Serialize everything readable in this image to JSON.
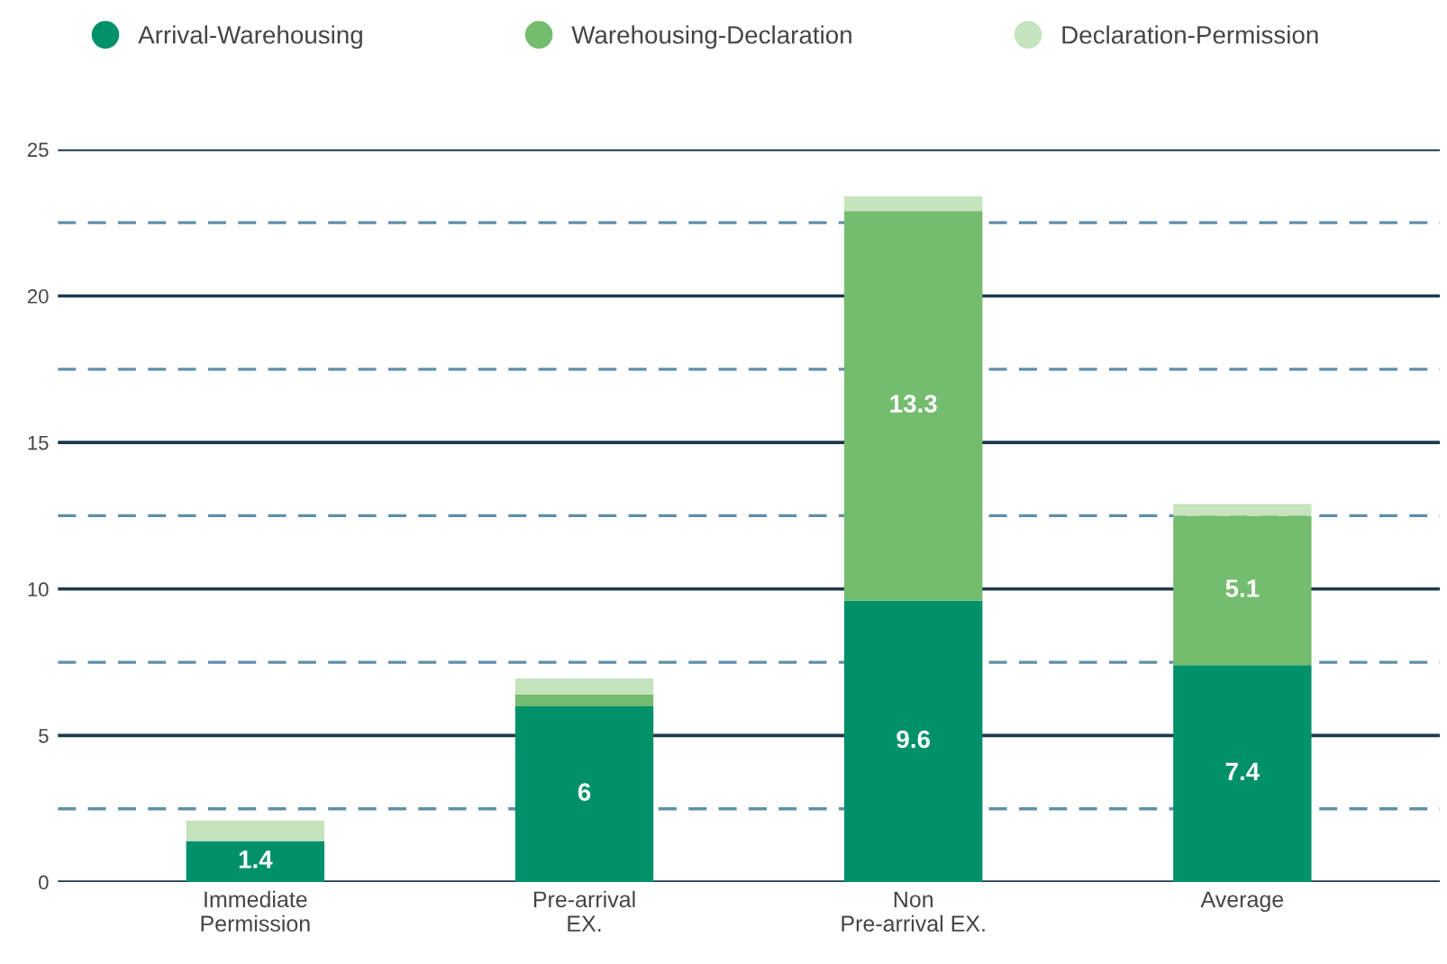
{
  "chart_data": {
    "type": "bar",
    "stacked": true,
    "categories": [
      "Immediate\nPermission",
      "Pre-arrival\nEX.",
      "Non\nPre-arrival EX.",
      "Average"
    ],
    "series": [
      {
        "name": "Arrival-Warehousing",
        "color": "#00906a",
        "values": [
          1.4,
          6,
          9.6,
          7.4
        ],
        "value_labels": [
          "1.4",
          "6",
          "9.6",
          "7.4"
        ]
      },
      {
        "name": "Warehousing-Declaration",
        "color": "#74bc6e",
        "values": [
          0,
          0.4,
          13.3,
          5.1
        ],
        "value_labels": [
          null,
          null,
          "13.3",
          "5.1"
        ]
      },
      {
        "name": "Declaration-Permission",
        "color": "#c5e3bc",
        "values": [
          0.7,
          0.55,
          0.5,
          0.4
        ],
        "value_labels": [
          null,
          null,
          null,
          null
        ]
      }
    ],
    "ylim": [
      0,
      25
    ],
    "yticks": [
      0,
      {
        "value": 2.5,
        "label": null
      },
      5,
      {
        "value": 7.5,
        "label": null
      },
      10,
      {
        "value": 12.5,
        "label": null
      },
      15,
      {
        "value": 17.5,
        "label": null
      },
      20,
      {
        "value": 22.5,
        "label": null
      },
      25
    ],
    "grid": "y",
    "legend": "top left"
  }
}
